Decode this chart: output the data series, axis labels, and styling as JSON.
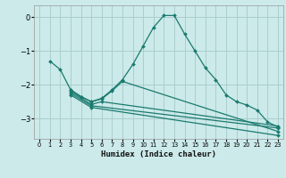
{
  "xlabel": "Humidex (Indice chaleur)",
  "ylabel": "",
  "bg_color": "#cceaea",
  "grid_color": "#aacece",
  "line_color": "#1a7a6e",
  "xlim": [
    -0.5,
    23.5
  ],
  "ylim": [
    -3.6,
    0.35
  ],
  "yticks": [
    0,
    -1,
    -2,
    -3
  ],
  "xticks": [
    0,
    1,
    2,
    3,
    4,
    5,
    6,
    7,
    8,
    9,
    10,
    11,
    12,
    13,
    14,
    15,
    16,
    17,
    18,
    19,
    20,
    21,
    22,
    23
  ],
  "lines": [
    {
      "x": [
        1,
        2,
        3,
        4,
        5,
        6,
        7,
        8,
        9,
        10,
        11,
        12,
        13,
        14,
        15,
        16,
        17,
        18,
        19,
        20,
        21,
        22,
        23
      ],
      "y": [
        -1.3,
        -1.55,
        -2.15,
        -2.35,
        -2.5,
        -2.4,
        -2.15,
        -1.85,
        -1.4,
        -0.85,
        -0.3,
        0.05,
        0.05,
        -0.5,
        -1.0,
        -1.5,
        -1.85,
        -2.3,
        -2.5,
        -2.6,
        -2.75,
        -3.1,
        -3.25
      ]
    },
    {
      "x": [
        3,
        4,
        5,
        6,
        7,
        8,
        23
      ],
      "y": [
        -2.15,
        -2.35,
        -2.5,
        -2.42,
        -2.18,
        -1.9,
        -3.38
      ]
    },
    {
      "x": [
        3,
        5,
        6,
        23
      ],
      "y": [
        -2.2,
        -2.58,
        -2.5,
        -3.22
      ]
    },
    {
      "x": [
        3,
        5,
        23
      ],
      "y": [
        -2.25,
        -2.62,
        -3.28
      ]
    },
    {
      "x": [
        3,
        5,
        23
      ],
      "y": [
        -2.3,
        -2.67,
        -3.5
      ]
    }
  ]
}
